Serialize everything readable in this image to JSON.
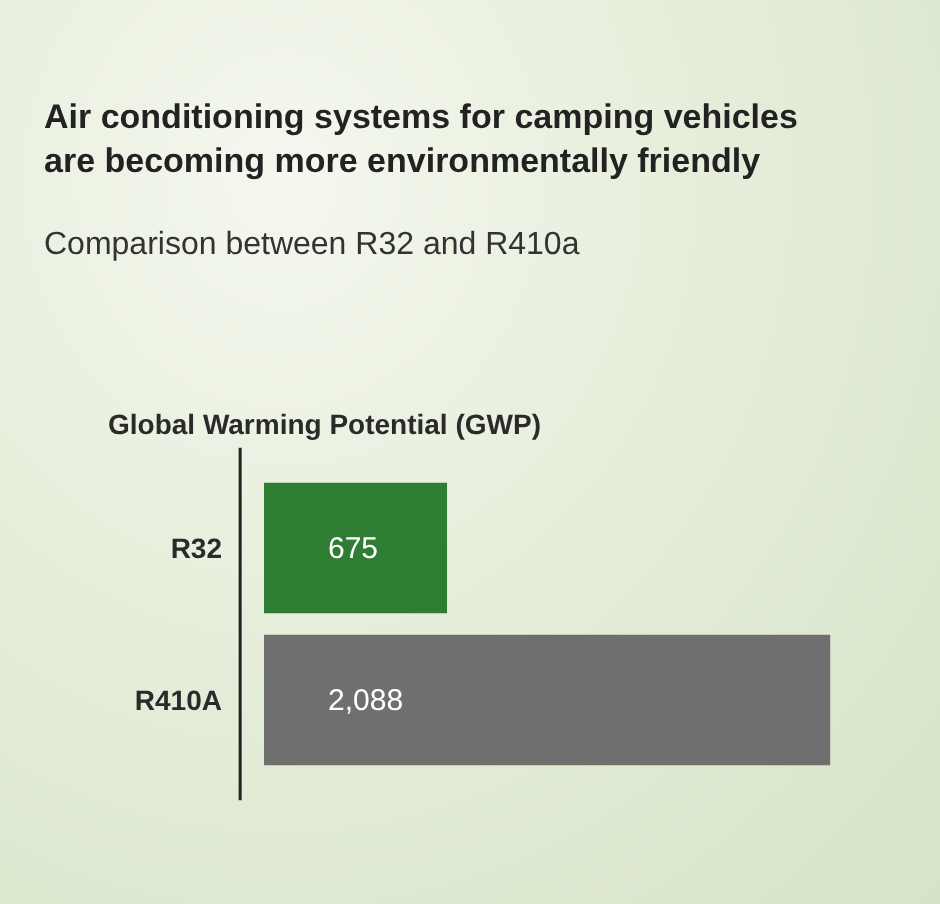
{
  "chart_data": {
    "type": "bar",
    "orientation": "horizontal",
    "title": "Air conditioning systems for camping vehicles are becoming more environmentally friendly",
    "subtitle": "Comparison between R32 and R410a",
    "annotations": [
      "Global Warming Potential (GWP)"
    ],
    "categories": [
      "R32",
      "R410A"
    ],
    "values": [
      675,
      2088
    ],
    "colors": [
      "#2f7d32",
      "#6f6f6f"
    ],
    "value_labels": [
      "675",
      "2,088"
    ]
  }
}
